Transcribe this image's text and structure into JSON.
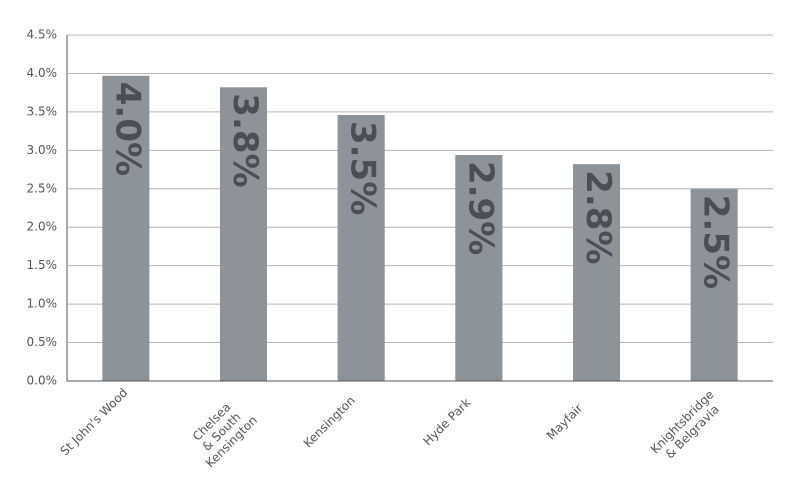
{
  "chart_data": {
    "type": "bar",
    "categories": [
      [
        "St John's Wood"
      ],
      [
        "Chelsea",
        "& South",
        "Kensington"
      ],
      [
        "Kensington"
      ],
      [
        "Hyde Park"
      ],
      [
        "Mayfair"
      ],
      [
        "Knightsbridge",
        "& Belgravia"
      ]
    ],
    "values": [
      3.97,
      3.82,
      3.46,
      2.94,
      2.82,
      2.5
    ],
    "value_labels": [
      "4.0%",
      "3.8%",
      "3.5%",
      "2.9%",
      "2.8%",
      "2.5%"
    ],
    "color": "#8c9399",
    "ylim": [
      0,
      4.5
    ],
    "yticks": [
      {
        "value": 0,
        "label": "0.0%"
      },
      {
        "value": 0.5,
        "label": "0.5%"
      },
      {
        "value": 1,
        "label": "1.0%"
      },
      {
        "value": 1.5,
        "label": "1.5%"
      },
      {
        "value": 2,
        "label": "2.0%"
      },
      {
        "value": 2.5,
        "label": "2.5%"
      },
      {
        "value": 3,
        "label": "3.0%"
      },
      {
        "value": 3.5,
        "label": "3.5%"
      },
      {
        "value": 4,
        "label": "4.0%"
      },
      {
        "value": 4.5,
        "label": "4.5%"
      }
    ],
    "grid": true
  }
}
